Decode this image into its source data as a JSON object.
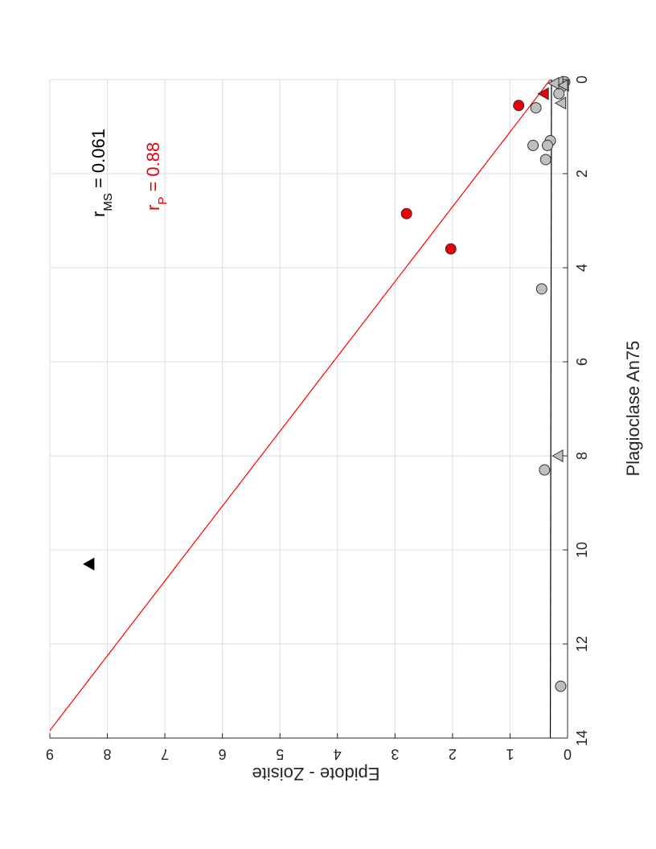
{
  "chart_data": {
    "type": "scatter",
    "title": "",
    "xlabel": "Plagioclase An75",
    "ylabel": "Epidote - Zoisite",
    "xlim": [
      0,
      14
    ],
    "ylim": [
      0,
      9
    ],
    "xticks": [
      0,
      2,
      4,
      6,
      8,
      10,
      12,
      14
    ],
    "yticks": [
      0,
      1,
      2,
      3,
      4,
      5,
      6,
      7,
      8,
      9
    ],
    "grid": true,
    "rotation": "rotated 90 degrees clockwise",
    "series": [
      {
        "marker": "circle",
        "color": "#bfbfbf",
        "points": [
          {
            "x": 0.05,
            "y": 0.05
          },
          {
            "x": 0.15,
            "y": 0.1
          },
          {
            "x": 0.3,
            "y": 0.15
          },
          {
            "x": 0.6,
            "y": 0.55
          },
          {
            "x": 1.3,
            "y": 0.3
          },
          {
            "x": 1.4,
            "y": 0.35
          },
          {
            "x": 1.4,
            "y": 0.6
          },
          {
            "x": 1.7,
            "y": 0.38
          },
          {
            "x": 4.45,
            "y": 0.45
          },
          {
            "x": 8.3,
            "y": 0.4
          },
          {
            "x": 12.9,
            "y": 0.12
          }
        ]
      },
      {
        "marker": "circle",
        "color": "#e8000b",
        "points": [
          {
            "x": 0.55,
            "y": 0.85
          },
          {
            "x": 2.85,
            "y": 2.8
          },
          {
            "x": 3.6,
            "y": 2.03
          }
        ]
      },
      {
        "marker": "triangle",
        "color": "#bfbfbf",
        "points": [
          {
            "x": 0.05,
            "y": 0.15
          },
          {
            "x": 0.08,
            "y": 0.22
          },
          {
            "x": 0.12,
            "y": 0.05
          },
          {
            "x": 0.5,
            "y": 0.1
          },
          {
            "x": 8.0,
            "y": 0.15
          }
        ]
      },
      {
        "marker": "triangle",
        "color": "#e8000b",
        "points": [
          {
            "x": 0.3,
            "y": 0.4
          }
        ]
      },
      {
        "marker": "triangle",
        "color": "#000000",
        "points": [
          {
            "x": 10.3,
            "y": 8.3
          }
        ]
      }
    ],
    "fit_lines": [
      {
        "color": "#ff0000",
        "x": [
          0,
          14
        ],
        "y": [
          0.3,
          9.1
        ]
      },
      {
        "color": "#000000",
        "x": [
          0,
          14
        ],
        "y": [
          0.28,
          0.3
        ]
      }
    ],
    "annotations": {
      "ms": {
        "base": "r",
        "sub": "MS",
        "rest": " = 0.061",
        "color": "#000000"
      },
      "p": {
        "base": "r",
        "sub": "P",
        "rest": " = 0.88",
        "color": "#e8000b"
      }
    }
  }
}
